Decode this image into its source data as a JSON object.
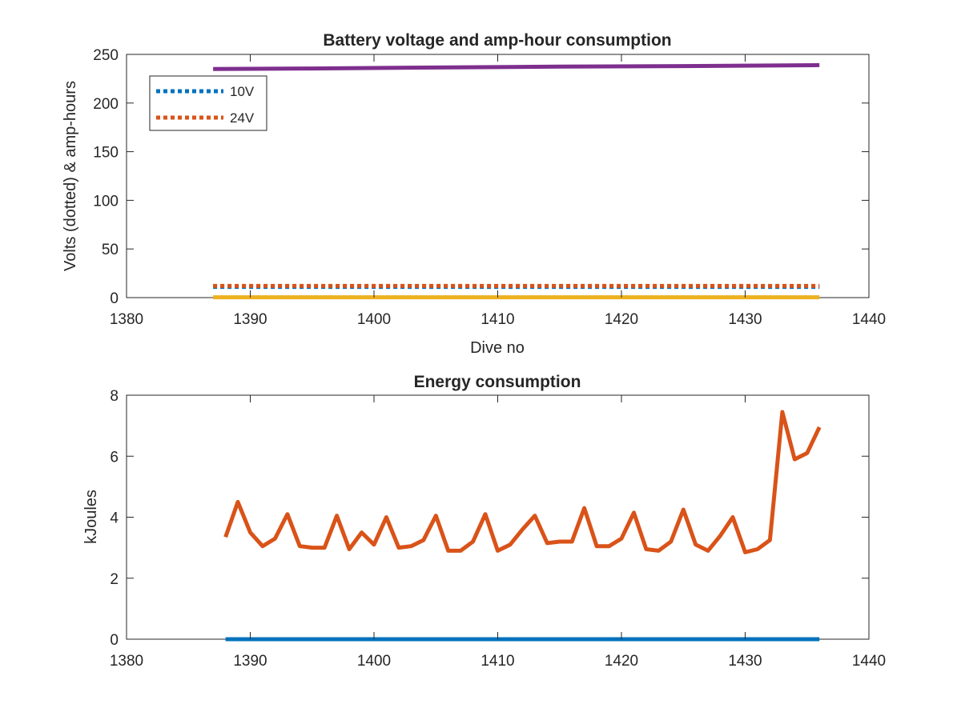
{
  "chart_data": [
    {
      "type": "line",
      "title": "Battery voltage and amp-hour consumption",
      "xlabel": "Dive no",
      "ylabel": "Volts (dotted) & amp-hours",
      "xlim": [
        1380,
        1440
      ],
      "ylim": [
        0,
        250
      ],
      "xticks": [
        1380,
        1390,
        1400,
        1410,
        1420,
        1430,
        1440
      ],
      "yticks": [
        0,
        50,
        100,
        150,
        200,
        250
      ],
      "legend": {
        "placement": "top-left",
        "entries": [
          "10V",
          "24V"
        ]
      },
      "series": [
        {
          "name": "10V",
          "style": "dotted",
          "color": "#0072BD",
          "x": [
            1387,
            1436
          ],
          "y": [
            11,
            11
          ]
        },
        {
          "name": "24V",
          "style": "dotted",
          "color": "#D95319",
          "x": [
            1387,
            1436
          ],
          "y": [
            12,
            12
          ]
        },
        {
          "style": "solid",
          "color": "#EDB120",
          "x": [
            1387,
            1436
          ],
          "y": [
            0.3,
            0.3
          ]
        },
        {
          "style": "solid",
          "color": "#7E2F8E",
          "x": [
            1387,
            1395,
            1405,
            1415,
            1425,
            1436
          ],
          "y": [
            235,
            235.5,
            236.5,
            237.5,
            238,
            239
          ]
        }
      ]
    },
    {
      "type": "line",
      "title": "Energy consumption",
      "xlabel": "",
      "ylabel": "kJoules",
      "xlim": [
        1380,
        1440
      ],
      "ylim": [
        0,
        8
      ],
      "xticks": [
        1380,
        1390,
        1400,
        1410,
        1420,
        1430,
        1440
      ],
      "yticks": [
        0,
        2,
        4,
        6,
        8
      ],
      "series": [
        {
          "style": "solid",
          "color": "#0072BD",
          "x": [
            1388,
            1436
          ],
          "y": [
            0,
            0
          ]
        },
        {
          "style": "solid",
          "color": "#D95319",
          "x": [
            1388,
            1389,
            1390,
            1391,
            1392,
            1393,
            1394,
            1395,
            1396,
            1397,
            1398,
            1399,
            1400,
            1401,
            1402,
            1403,
            1404,
            1405,
            1406,
            1407,
            1408,
            1409,
            1410,
            1411,
            1412,
            1413,
            1414,
            1415,
            1416,
            1417,
            1418,
            1419,
            1420,
            1421,
            1422,
            1423,
            1424,
            1425,
            1426,
            1427,
            1428,
            1429,
            1430,
            1431,
            1432,
            1433,
            1434,
            1435,
            1436
          ],
          "y": [
            3.35,
            4.5,
            3.5,
            3.05,
            3.3,
            4.1,
            3.05,
            3.0,
            3.0,
            4.05,
            2.95,
            3.5,
            3.1,
            4.0,
            3.0,
            3.05,
            3.25,
            4.05,
            2.9,
            2.9,
            3.2,
            4.1,
            2.9,
            3.1,
            3.6,
            4.05,
            3.15,
            3.2,
            3.2,
            4.3,
            3.05,
            3.05,
            3.3,
            4.15,
            2.95,
            2.9,
            3.2,
            4.25,
            3.1,
            2.9,
            3.4,
            4.0,
            2.85,
            2.95,
            3.25,
            7.45,
            5.9,
            6.1,
            6.95
          ]
        }
      ]
    }
  ]
}
